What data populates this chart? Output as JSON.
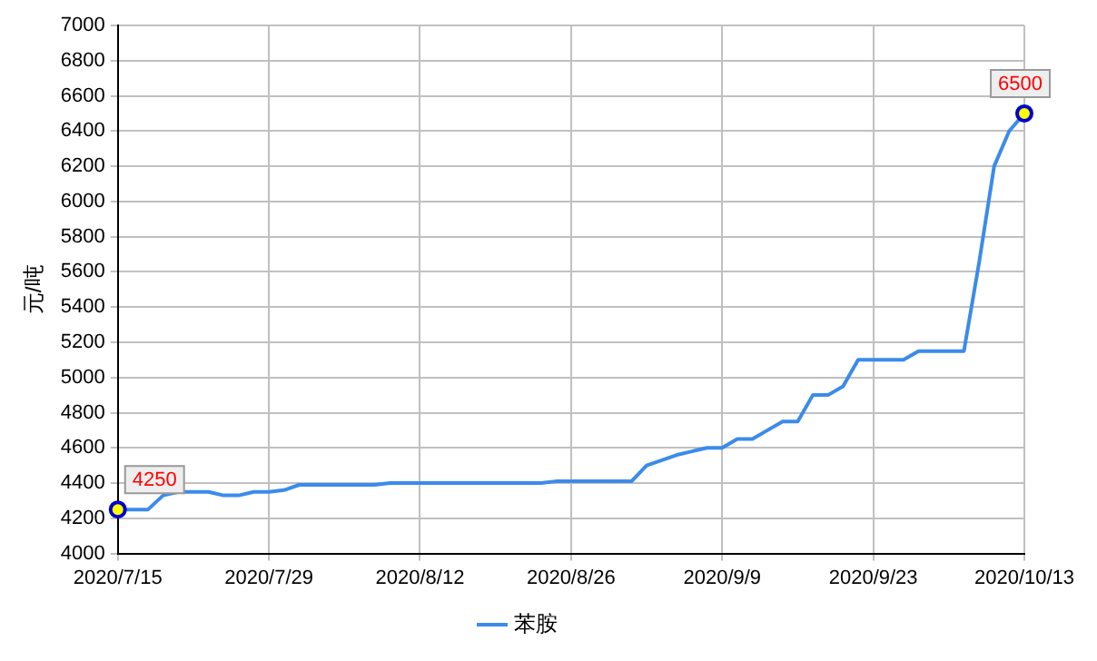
{
  "chart_data": {
    "type": "line",
    "ylabel": "元/吨",
    "categories": [
      "2020/7/15",
      null,
      null,
      null,
      null,
      null,
      null,
      null,
      null,
      null,
      "2020/7/29",
      null,
      null,
      null,
      null,
      null,
      null,
      null,
      null,
      null,
      "2020/8/12",
      null,
      null,
      null,
      null,
      null,
      null,
      null,
      null,
      null,
      "2020/8/26",
      null,
      null,
      null,
      null,
      null,
      null,
      null,
      null,
      null,
      "2020/9/9",
      null,
      null,
      null,
      null,
      null,
      null,
      null,
      null,
      null,
      "2020/9/23",
      null,
      null,
      null,
      null,
      null,
      null,
      null,
      null,
      null,
      "2020/10/13"
    ],
    "series": [
      {
        "name": "苯胺",
        "color": "#3b8beb",
        "values": [
          4250,
          4250,
          4250,
          4330,
          4350,
          4350,
          4350,
          4330,
          4330,
          4350,
          4350,
          4360,
          4390,
          4390,
          4390,
          4390,
          4390,
          4390,
          4400,
          4400,
          4400,
          4400,
          4400,
          4400,
          4400,
          4400,
          4400,
          4400,
          4400,
          4410,
          4410,
          4410,
          4410,
          4410,
          4410,
          4500,
          4530,
          4560,
          4580,
          4600,
          4600,
          4650,
          4650,
          4700,
          4750,
          4750,
          4900,
          4900,
          4950,
          5100,
          5100,
          5100,
          5100,
          5150,
          5150,
          5150,
          5150,
          5650,
          6200,
          6400,
          6500
        ]
      }
    ],
    "ylim": [
      4000,
      7000
    ],
    "yticks": [
      4000,
      4200,
      4400,
      4600,
      4800,
      5000,
      5200,
      5400,
      5600,
      5800,
      6000,
      6200,
      6400,
      6600,
      6800,
      7000
    ],
    "grid": true,
    "legend": "bottom",
    "marker": "none",
    "line_style": "solid",
    "annotations": [
      {
        "text": "4250",
        "x": "2020/7/15",
        "y": 4250
      },
      {
        "text": "6500",
        "x": "2020/10/13",
        "y": 6500
      }
    ]
  }
}
